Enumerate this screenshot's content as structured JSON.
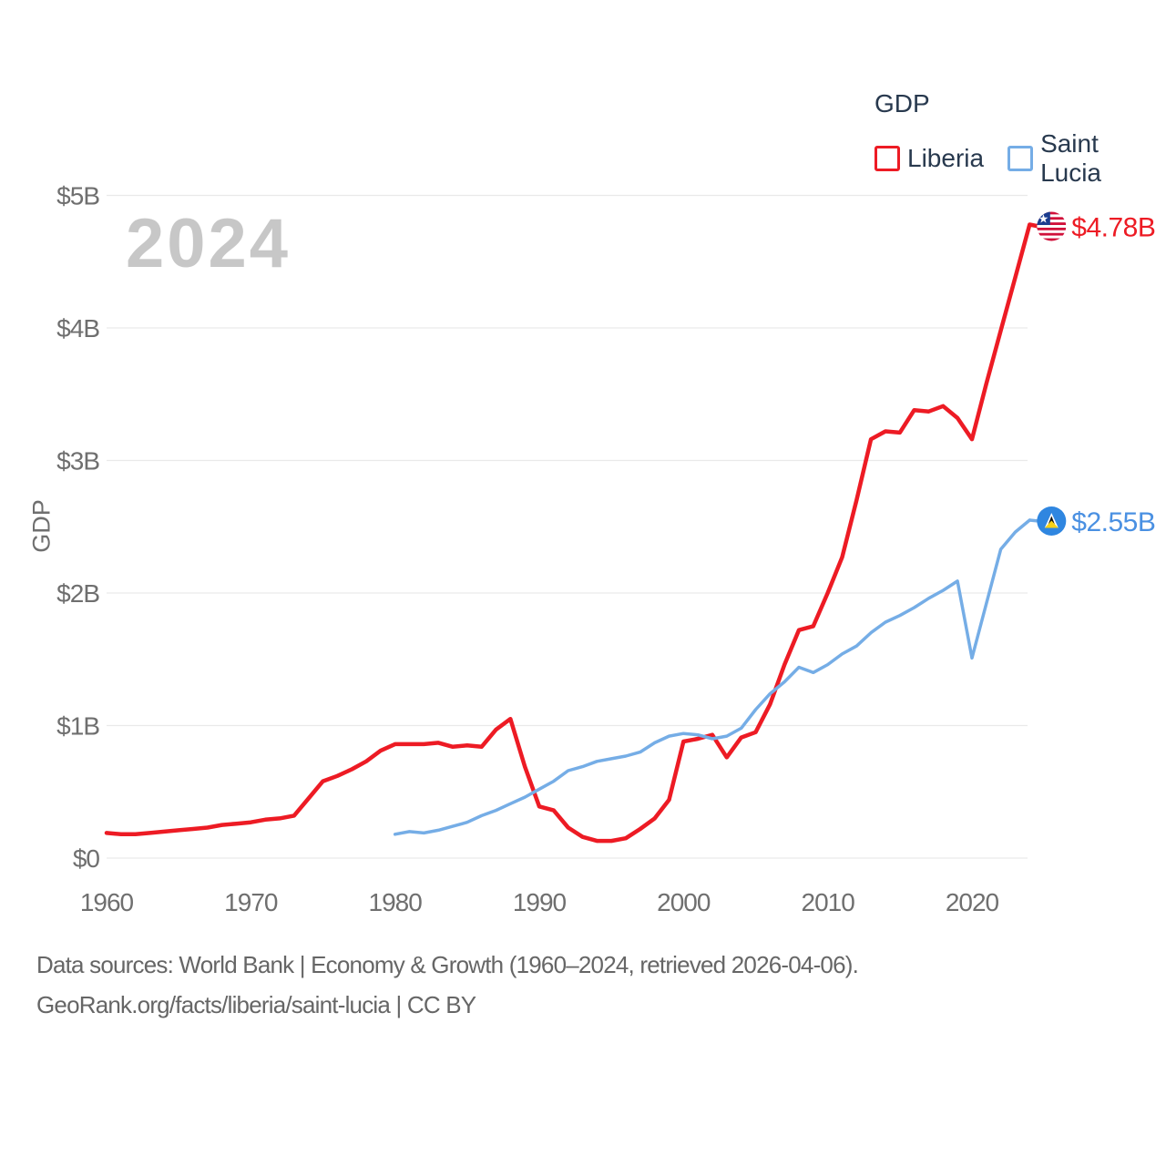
{
  "watermark": "2024",
  "legend": {
    "title": "GDP",
    "items": [
      {
        "label": "Liberia",
        "color": "#ed1b24"
      },
      {
        "label": "Saint Lucia",
        "color": "#75ade6"
      }
    ]
  },
  "footer": {
    "line1": "Data sources: World Bank | Economy & Growth (1960–2024, retrieved 2026-04-06).",
    "line2": "GeoRank.org/facts/liberia/saint-lucia | CC BY"
  },
  "chart_data": {
    "type": "line",
    "title": "GDP",
    "ylabel": "GDP",
    "xlabel": "",
    "grid": true,
    "legend_position": "top-right",
    "ylim": [
      0,
      5
    ],
    "x_range": [
      1960,
      2024
    ],
    "x_ticks": [
      "1960",
      "1970",
      "1980",
      "1990",
      "2000",
      "2010",
      "2020"
    ],
    "x_tick_years": [
      1960,
      1970,
      1980,
      1990,
      2000,
      2010,
      2020
    ],
    "y_ticks": [
      {
        "label": "$0",
        "value": 0
      },
      {
        "label": "$1B",
        "value": 1
      },
      {
        "label": "$2B",
        "value": 2
      },
      {
        "label": "$3B",
        "value": 3
      },
      {
        "label": "$4B",
        "value": 4
      },
      {
        "label": "$5B",
        "value": 5
      }
    ],
    "series": [
      {
        "name": "Liberia",
        "color": "#ed1b24",
        "label_color": "#ed1b24",
        "flag": "liberia",
        "start_year": 1960,
        "end_label": "$4.78B",
        "values": [
          0.19,
          0.18,
          0.18,
          0.19,
          0.2,
          0.21,
          0.22,
          0.23,
          0.25,
          0.26,
          0.27,
          0.29,
          0.3,
          0.32,
          0.45,
          0.58,
          0.62,
          0.67,
          0.73,
          0.81,
          0.86,
          0.86,
          0.86,
          0.87,
          0.84,
          0.85,
          0.84,
          0.97,
          1.05,
          0.69,
          0.39,
          0.36,
          0.23,
          0.16,
          0.13,
          0.13,
          0.15,
          0.22,
          0.3,
          0.44,
          0.88,
          0.9,
          0.93,
          0.76,
          0.91,
          0.95,
          1.16,
          1.46,
          1.72,
          1.75,
          2.0,
          2.27,
          2.7,
          3.16,
          3.22,
          3.21,
          3.38,
          3.37,
          3.41,
          3.32,
          3.16,
          3.58,
          3.98,
          4.38,
          4.78
        ]
      },
      {
        "name": "Saint Lucia",
        "color": "#75ade6",
        "label_color": "#4a90e2",
        "flag": "saint-lucia",
        "start_year": 1980,
        "end_label": "$2.55B",
        "values": [
          0.18,
          0.2,
          0.19,
          0.21,
          0.24,
          0.27,
          0.32,
          0.36,
          0.41,
          0.46,
          0.52,
          0.58,
          0.66,
          0.69,
          0.73,
          0.75,
          0.77,
          0.8,
          0.87,
          0.92,
          0.94,
          0.93,
          0.9,
          0.92,
          0.98,
          1.12,
          1.24,
          1.33,
          1.44,
          1.4,
          1.46,
          1.54,
          1.6,
          1.7,
          1.78,
          1.83,
          1.89,
          1.96,
          2.02,
          2.09,
          1.51,
          1.92,
          2.33,
          2.46,
          2.55
        ]
      }
    ]
  }
}
